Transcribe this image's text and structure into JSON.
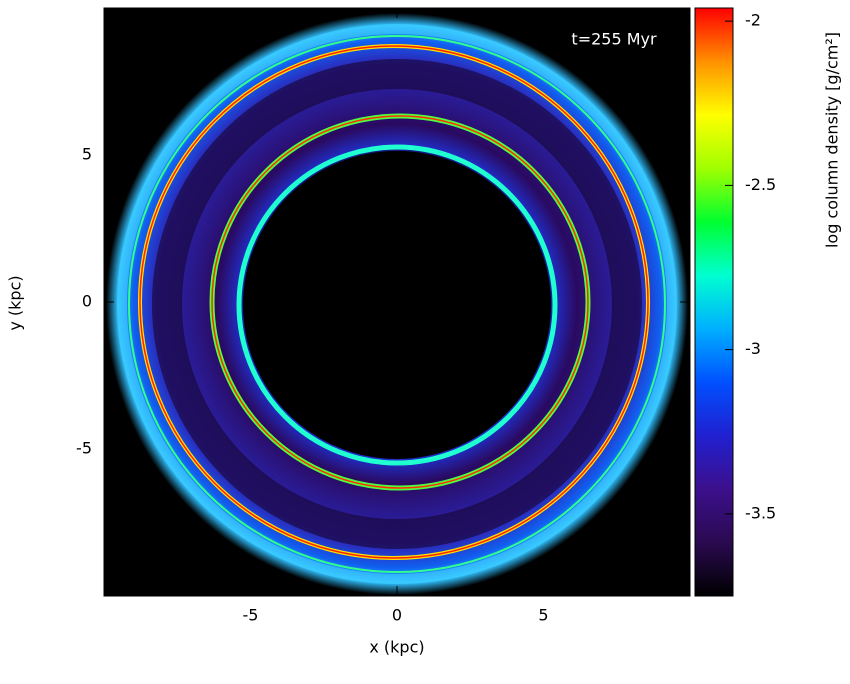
{
  "chart_data": {
    "type": "image",
    "annotation": "t=255 Myr",
    "xlabel": "x (kpc)",
    "ylabel": "y (kpc)",
    "xlim": [
      -10,
      10
    ],
    "ylim": [
      -10,
      10
    ],
    "xticks": [
      -5,
      0,
      5
    ],
    "yticks": [
      -5,
      0,
      5
    ],
    "colorbar": {
      "label": "log column density [g/cm²]",
      "lim": [
        -3.75,
        -1.96
      ],
      "ticks": [
        -2,
        -2.5,
        -3,
        -3.5
      ],
      "colors": [
        "#000000",
        "#2a0a50",
        "#3c0f8c",
        "#2020d0",
        "#0050ff",
        "#00b0ff",
        "#00ffd0",
        "#00ff30",
        "#a0ff00",
        "#ffff00",
        "#ff9000",
        "#ff0000"
      ]
    }
  }
}
